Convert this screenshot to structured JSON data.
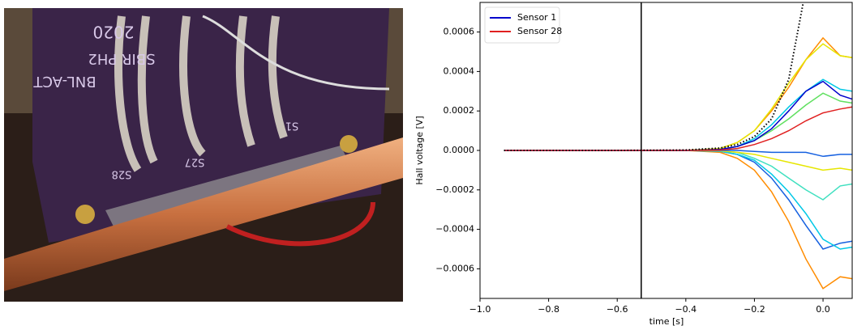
{
  "photo": {
    "labels": [
      "2020",
      "SBIR PH2",
      "BNL-ACT",
      "S28",
      "S27",
      "S1"
    ]
  },
  "chart_data": {
    "type": "line",
    "xlabel": "time [s]",
    "ylabel": "Hall voltage [V]",
    "xlim": [
      -1.0,
      0.085
    ],
    "ylim": [
      -0.00075,
      0.00075
    ],
    "xticks": [
      {
        "value": -1.0,
        "label": "−1.0"
      },
      {
        "value": -0.8,
        "label": "−0.8"
      },
      {
        "value": -0.6,
        "label": "−0.6"
      },
      {
        "value": -0.4,
        "label": "−0.4"
      },
      {
        "value": -0.2,
        "label": "−0.2"
      },
      {
        "value": 0.0,
        "label": "0.0"
      }
    ],
    "yticks": [
      {
        "value": -0.0006,
        "label": "−0.0006"
      },
      {
        "value": -0.0004,
        "label": "−0.0004"
      },
      {
        "value": -0.0002,
        "label": "−0.0002"
      },
      {
        "value": 0.0,
        "label": "0.0000"
      },
      {
        "value": 0.0002,
        "label": "0.0002"
      },
      {
        "value": 0.0004,
        "label": "0.0004"
      },
      {
        "value": 0.0006,
        "label": "0.0006"
      }
    ],
    "vline": -0.53,
    "legend": "upper left",
    "x": [
      -0.93,
      -0.8,
      -0.6,
      -0.4,
      -0.3,
      -0.25,
      -0.2,
      -0.15,
      -0.1,
      -0.05,
      0.0,
      0.05,
      0.085
    ],
    "series": [
      {
        "color": "#ff8c00",
        "values": [
          0,
          0,
          0,
          0,
          1e-05,
          4e-05,
          0.0001,
          0.0002,
          0.00032,
          0.00046,
          0.00057,
          0.00048,
          0.00047
        ]
      },
      {
        "color": "#ff8c00",
        "values": [
          0,
          0,
          0,
          0,
          -1e-05,
          -4e-05,
          -0.0001,
          -0.00021,
          -0.00036,
          -0.00055,
          -0.0007,
          -0.00064,
          -0.00065
        ]
      },
      {
        "color": "#e6e600",
        "values": [
          0,
          0,
          0,
          0,
          1e-05,
          4e-05,
          0.0001,
          0.00021,
          0.00034,
          0.00046,
          0.00054,
          0.00048,
          0.00047
        ]
      },
      {
        "color": "#00c8e6",
        "values": [
          0,
          0,
          0,
          0,
          5e-06,
          2e-05,
          6e-05,
          0.00013,
          0.00022,
          0.0003,
          0.00036,
          0.00031,
          0.0003
        ]
      },
      {
        "color": "#60e060",
        "values": [
          0,
          0,
          0,
          0,
          4e-06,
          2e-05,
          5e-05,
          0.0001,
          0.00016,
          0.00023,
          0.00029,
          0.00025,
          0.00024
        ]
      },
      {
        "color": "#1560e0",
        "values": [
          0,
          0,
          0,
          0,
          -5e-06,
          -2e-05,
          -6e-05,
          -0.00014,
          -0.00025,
          -0.00038,
          -0.0005,
          -0.00047,
          -0.00046
        ]
      },
      {
        "color": "#00c8e6",
        "values": [
          0,
          0,
          0,
          0,
          -4e-06,
          -2e-05,
          -5e-05,
          -0.00012,
          -0.00021,
          -0.00032,
          -0.00045,
          -0.0005,
          -0.00049
        ]
      },
      {
        "color": "#40e0c0",
        "values": [
          0,
          0,
          0,
          0,
          -3e-06,
          -1e-05,
          -4e-05,
          -8e-05,
          -0.00014,
          -0.0002,
          -0.00025,
          -0.00018,
          -0.00017
        ]
      },
      {
        "color": "#e6e600",
        "values": [
          0,
          0,
          0,
          0,
          -2e-06,
          -1e-05,
          -2e-05,
          -4e-05,
          -6e-05,
          -8e-05,
          -0.0001,
          -9e-05,
          -0.0001
        ]
      },
      {
        "color": "#1560e0",
        "values": [
          0,
          0,
          0,
          0,
          0,
          0,
          -5e-06,
          -1e-05,
          -1e-05,
          -1e-05,
          -3e-05,
          -2e-05,
          -2e-05
        ]
      },
      {
        "name": "Sensor 1",
        "color": "#0000cc",
        "values": [
          0,
          0,
          0,
          0,
          5e-06,
          2e-05,
          5e-05,
          0.00011,
          0.0002,
          0.0003,
          0.00035,
          0.00028,
          0.00026
        ]
      },
      {
        "name": "Sensor 28",
        "color": "#e02020",
        "values": [
          0,
          0,
          0,
          0,
          2e-06,
          1e-05,
          3e-05,
          6e-05,
          0.0001,
          0.00015,
          0.00019,
          0.00021,
          0.00022
        ]
      },
      {
        "color": "#000000",
        "style": "dotted",
        "values": [
          0,
          0,
          0,
          2e-06,
          1.2e-05,
          3e-05,
          7e-05,
          0.00016,
          0.00036,
          0.00082,
          null,
          null,
          null
        ]
      }
    ]
  }
}
